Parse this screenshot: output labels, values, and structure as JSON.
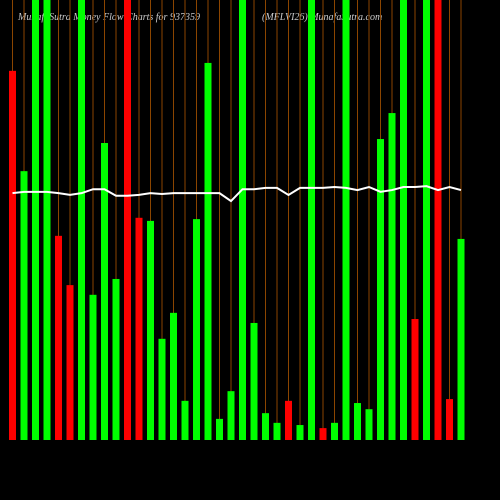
{
  "chart_data": {
    "type": "bar",
    "title": "MunafaSutra  Money Flow  Charts for 937359",
    "subtitle": "(MFLVI26) MunafaSutra.com",
    "values": [
      83.9,
      61.1,
      100,
      100,
      46.4,
      35.2,
      100,
      33.0,
      67.5,
      36.6,
      100,
      50.5,
      49.8,
      23.0,
      28.9,
      8.9,
      50.2,
      85.7,
      4.8,
      11.1,
      100,
      26.6,
      6.1,
      3.9,
      8.9,
      3.4,
      100,
      2.7,
      3.9,
      100,
      8.4,
      7.0,
      68.4,
      74.3,
      100,
      27.5,
      100,
      100,
      9.3,
      45.7
    ],
    "colors": [
      "#ff0000",
      "#00ff00",
      "#00ff00",
      "#00ff00",
      "#ff0000",
      "#ff0000",
      "#00ff00",
      "#00ff00",
      "#00ff00",
      "#00ff00",
      "#ff0000",
      "#ff0000",
      "#00ff00",
      "#00ff00",
      "#00ff00",
      "#00ff00",
      "#00ff00",
      "#00ff00",
      "#00ff00",
      "#00ff00",
      "#00ff00",
      "#00ff00",
      "#00ff00",
      "#00ff00",
      "#ff0000",
      "#00ff00",
      "#00ff00",
      "#ff0000",
      "#00ff00",
      "#00ff00",
      "#00ff00",
      "#00ff00",
      "#00ff00",
      "#00ff00",
      "#00ff00",
      "#ff0000",
      "#00ff00",
      "#ff0000",
      "#ff0000",
      "#00ff00"
    ],
    "line_values": [
      56.1,
      56.4,
      56.4,
      56.4,
      56.1,
      55.7,
      56.1,
      57.0,
      57.0,
      55.5,
      55.5,
      55.7,
      56.1,
      55.9,
      56.1,
      56.1,
      56.1,
      56.1,
      56.1,
      54.3,
      57.0,
      57.0,
      57.3,
      57.3,
      55.7,
      57.3,
      57.3,
      57.3,
      57.5,
      57.3,
      56.8,
      57.5,
      56.4,
      56.8,
      57.5,
      57.5,
      57.7,
      56.8,
      57.5,
      56.8
    ],
    "line_color": "#ffffff",
    "ylim": [
      0,
      100
    ]
  }
}
